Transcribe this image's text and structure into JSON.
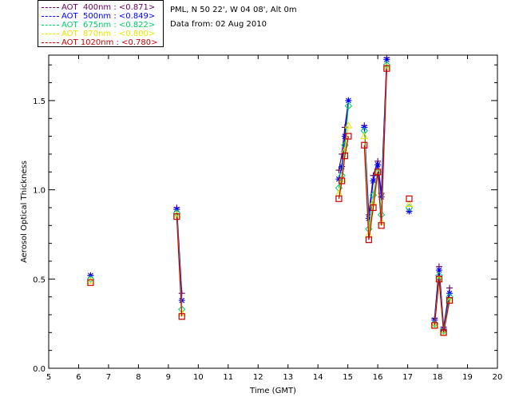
{
  "info": {
    "station": "PML, N 50 22', W 04 08', Alt 0m",
    "date": "Data from: 02 Aug 2010"
  },
  "chart_data": {
    "type": "line",
    "xlabel": "Time (GMT)",
    "ylabel": "Aerosol Optical Thickness",
    "xlim": [
      5,
      20
    ],
    "ylim": [
      0,
      1.75
    ],
    "xticks": [
      "5",
      "6",
      "7",
      "8",
      "9",
      "10",
      "11",
      "12",
      "13",
      "14",
      "15",
      "16",
      "17",
      "18",
      "19",
      "20"
    ],
    "yticks": [
      "0.0",
      "0.5",
      "1.0",
      "1.5"
    ],
    "legend_position": "top-left",
    "series": [
      {
        "name": "AOT  400nm : <0.871>",
        "color": "#660066",
        "marker": "plus",
        "segments": [
          [
            [
              6.4,
              0.52
            ]
          ],
          [
            [
              9.28,
              0.9
            ],
            [
              9.45,
              0.42
            ]
          ],
          [
            [
              14.7,
              1.11
            ],
            [
              14.8,
              1.2
            ],
            [
              14.9,
              1.35
            ],
            [
              15.02,
              1.5
            ]
          ],
          [
            [
              15.55,
              1.36
            ],
            [
              15.7,
              0.86
            ],
            [
              15.85,
              1.08
            ],
            [
              16.0,
              1.16
            ],
            [
              16.12,
              0.98
            ],
            [
              16.3,
              1.74
            ]
          ],
          [
            [
              17.05,
              0.88
            ]
          ],
          [
            [
              17.9,
              0.28
            ],
            [
              18.05,
              0.57
            ],
            [
              18.2,
              0.23
            ],
            [
              18.4,
              0.45
            ]
          ]
        ]
      },
      {
        "name": "AOT  500nm : <0.849>",
        "color": "#0000ff",
        "marker": "asterisk",
        "segments": [
          [
            [
              6.4,
              0.52
            ]
          ],
          [
            [
              9.28,
              0.89
            ],
            [
              9.45,
              0.38
            ]
          ],
          [
            [
              14.7,
              1.06
            ],
            [
              14.8,
              1.13
            ],
            [
              14.9,
              1.3
            ],
            [
              15.02,
              1.5
            ]
          ],
          [
            [
              15.55,
              1.35
            ],
            [
              15.7,
              0.84
            ],
            [
              15.85,
              1.05
            ],
            [
              16.0,
              1.14
            ],
            [
              16.12,
              0.96
            ],
            [
              16.3,
              1.73
            ]
          ],
          [
            [
              17.05,
              0.88
            ]
          ],
          [
            [
              17.9,
              0.27
            ],
            [
              18.05,
              0.55
            ],
            [
              18.2,
              0.22
            ],
            [
              18.4,
              0.42
            ]
          ]
        ]
      },
      {
        "name": "AOT  675nm : <0.822>",
        "color": "#00cc66",
        "marker": "diamond",
        "segments": [
          [
            [
              6.4,
              0.5
            ]
          ],
          [
            [
              9.28,
              0.87
            ],
            [
              9.45,
              0.33
            ]
          ],
          [
            [
              14.7,
              1.01
            ],
            [
              14.8,
              1.08
            ],
            [
              14.9,
              1.25
            ],
            [
              15.02,
              1.47
            ]
          ],
          [
            [
              15.55,
              1.33
            ],
            [
              15.7,
              0.78
            ],
            [
              15.85,
              0.97
            ],
            [
              16.0,
              1.1
            ],
            [
              16.12,
              0.86
            ],
            [
              16.3,
              1.7
            ]
          ],
          [
            [
              17.05,
              0.9
            ]
          ],
          [
            [
              17.9,
              0.25
            ],
            [
              18.05,
              0.52
            ],
            [
              18.2,
              0.21
            ],
            [
              18.4,
              0.4
            ]
          ]
        ]
      },
      {
        "name": "AOT  870nm : <0.800>",
        "color": "#e6e600",
        "marker": "triangle",
        "segments": [
          [
            [
              6.4,
              0.49
            ]
          ],
          [
            [
              9.28,
              0.86
            ],
            [
              9.45,
              0.31
            ]
          ],
          [
            [
              14.7,
              0.98
            ],
            [
              14.8,
              1.06
            ],
            [
              14.9,
              1.22
            ],
            [
              15.02,
              1.36
            ]
          ],
          [
            [
              15.55,
              1.3
            ],
            [
              15.7,
              0.75
            ],
            [
              15.85,
              0.93
            ],
            [
              16.0,
              1.1
            ],
            [
              16.12,
              0.82
            ],
            [
              16.3,
              1.69
            ]
          ],
          [
            [
              17.05,
              0.92
            ]
          ],
          [
            [
              17.9,
              0.24
            ],
            [
              18.05,
              0.5
            ],
            [
              18.2,
              0.2
            ],
            [
              18.4,
              0.38
            ]
          ]
        ]
      },
      {
        "name": "AOT 1020nm : <0.780>",
        "color": "#cc0000",
        "marker": "square",
        "segments": [
          [
            [
              6.4,
              0.48
            ]
          ],
          [
            [
              9.28,
              0.85
            ],
            [
              9.45,
              0.29
            ]
          ],
          [
            [
              14.7,
              0.95
            ],
            [
              14.8,
              1.05
            ],
            [
              14.9,
              1.19
            ],
            [
              15.02,
              1.3
            ]
          ],
          [
            [
              15.55,
              1.25
            ],
            [
              15.7,
              0.72
            ],
            [
              15.85,
              0.9
            ],
            [
              16.0,
              1.1
            ],
            [
              16.12,
              0.8
            ],
            [
              16.3,
              1.68
            ]
          ],
          [
            [
              17.05,
              0.95
            ]
          ],
          [
            [
              17.9,
              0.24
            ],
            [
              18.05,
              0.5
            ],
            [
              18.2,
              0.2
            ],
            [
              18.4,
              0.38
            ]
          ]
        ]
      }
    ]
  }
}
